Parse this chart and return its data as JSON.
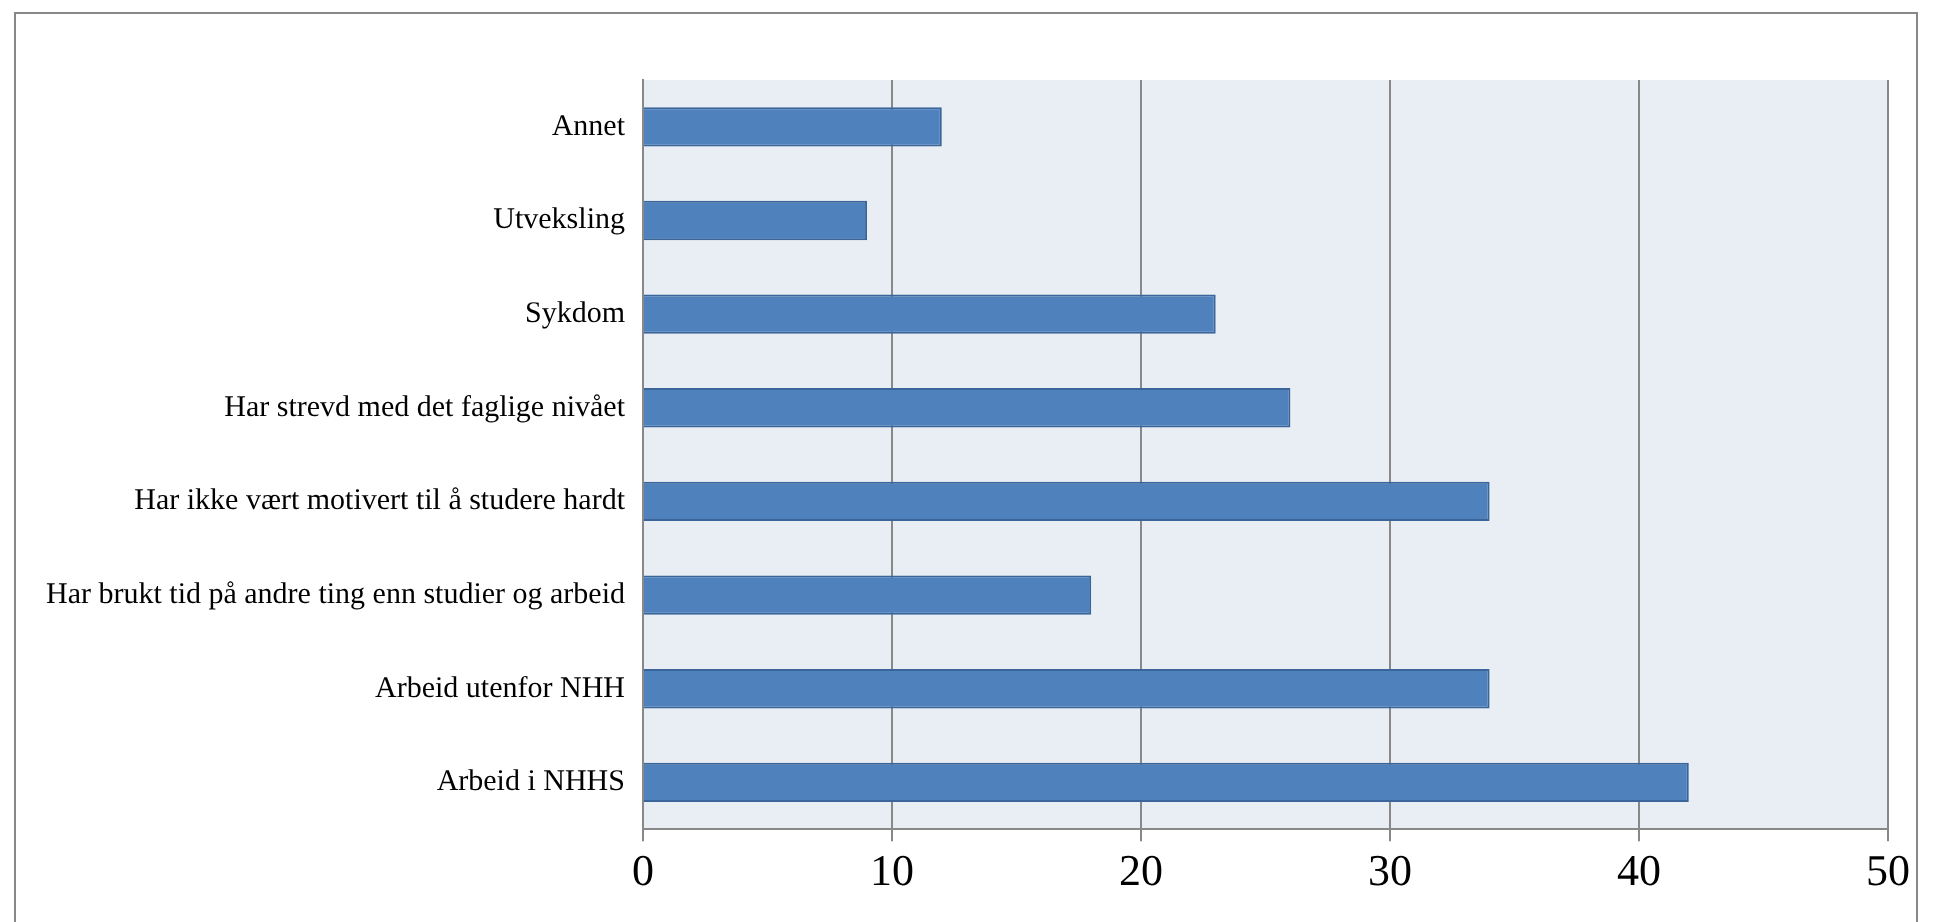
{
  "chart_data": {
    "type": "bar",
    "orientation": "horizontal",
    "categories": [
      "Annet",
      "Utveksling",
      "Sykdom",
      "Har strevd med det faglige nivået",
      "Har ikke vært motivert til å studere hardt",
      "Har brukt tid på andre ting enn studier og arbeid",
      "Arbeid utenfor NHH",
      "Arbeid i NHHS"
    ],
    "values": [
      12,
      9,
      23,
      26,
      34,
      18,
      34,
      42
    ],
    "color": "#4f81bd",
    "xlim": [
      0,
      50
    ],
    "xticks": [
      0,
      10,
      20,
      30,
      40,
      50
    ],
    "grid": "x",
    "legend": false
  }
}
